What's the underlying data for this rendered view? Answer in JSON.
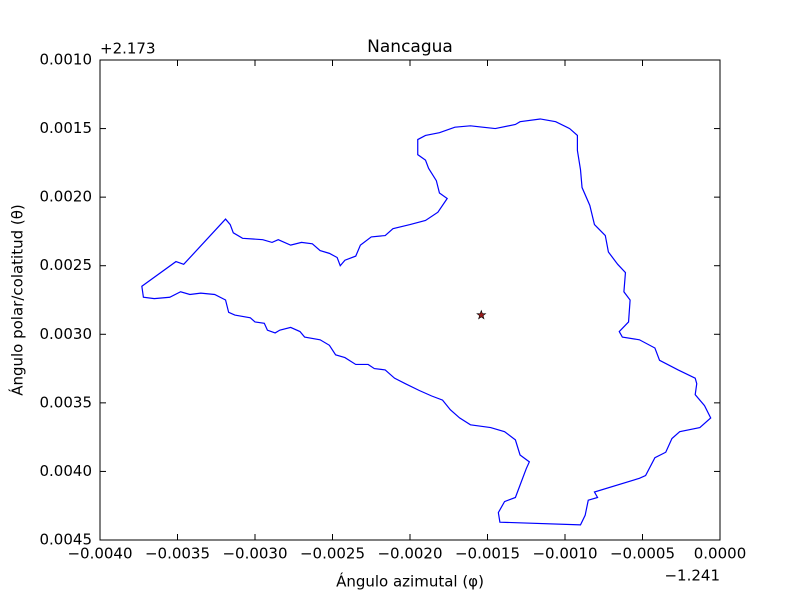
{
  "chart_data": {
    "type": "line",
    "title": "Nancagua",
    "xlabel": "Ángulo azimutal (φ)",
    "ylabel": "Ángulo polar/colatitud (θ)",
    "x_offset": "−1.241",
    "y_offset": "+2.173",
    "xlim": [
      -0.004,
      0
    ],
    "ylim": [
      0.0045,
      0.001
    ],
    "xticks": [
      {
        "value": -0.004,
        "label": "−0.0040"
      },
      {
        "value": -0.0035,
        "label": "−0.0035"
      },
      {
        "value": -0.003,
        "label": "−0.0030"
      },
      {
        "value": -0.0025,
        "label": "−0.0025"
      },
      {
        "value": -0.002,
        "label": "−0.0020"
      },
      {
        "value": -0.0015,
        "label": "−0.0015"
      },
      {
        "value": -0.001,
        "label": "−0.0010"
      },
      {
        "value": -0.0005,
        "label": "−0.0005"
      },
      {
        "value": 0,
        "label": "0.0000"
      }
    ],
    "yticks": [
      {
        "value": 0.001,
        "label": "0.0010"
      },
      {
        "value": 0.0015,
        "label": "0.0015"
      },
      {
        "value": 0.002,
        "label": "0.0020"
      },
      {
        "value": 0.0025,
        "label": "0.0025"
      },
      {
        "value": 0.003,
        "label": "0.0030"
      },
      {
        "value": 0.0035,
        "label": "0.0035"
      },
      {
        "value": 0.004,
        "label": "0.0040"
      },
      {
        "value": 0.0045,
        "label": "0.0045"
      }
    ],
    "series": [
      {
        "color": "#0000ff",
        "x": [
          -0.00373,
          -0.00351,
          -0.00346,
          -0.00319,
          -0.00316,
          -0.00314,
          -0.00308,
          -0.00295,
          -0.00289,
          -0.00285,
          -0.00277,
          -0.0027,
          -0.00263,
          -0.00258,
          -0.00252,
          -0.00247,
          -0.00245,
          -0.00242,
          -0.00235,
          -0.00232,
          -0.00225,
          -0.00216,
          -0.00211,
          -0.002,
          -0.0019,
          -0.00182,
          -0.00176,
          -0.00181,
          -0.00183,
          -0.00188,
          -0.0019,
          -0.00195,
          -0.00195,
          -0.0019,
          -0.00181,
          -0.00171,
          -0.00161,
          -0.00145,
          -0.00132,
          -0.00129,
          -0.00116,
          -0.00106,
          -0.00097,
          -0.00092,
          -0.00092,
          -0.0009,
          -0.00089,
          -0.00084,
          -0.00081,
          -0.00074,
          -0.00072,
          -0.00066,
          -0.00061,
          -0.00062,
          -0.00058,
          -0.00059,
          -0.00065,
          -0.00063,
          -0.00052,
          -0.00042,
          -0.00039,
          -0.00027,
          -0.00016,
          -0.00015,
          -0.00016,
          -0.0001,
          -6e-05,
          -0.00013,
          -0.00026,
          -0.00031,
          -0.00035,
          -0.00042,
          -0.00048,
          -0.00052,
          -0.00081,
          -0.00079,
          -0.00085,
          -0.00087,
          -0.0009,
          -0.00142,
          -0.00143,
          -0.00139,
          -0.00132,
          -0.00129,
          -0.00125,
          -0.00123,
          -0.00129,
          -0.00132,
          -0.00139,
          -0.00148,
          -0.00161,
          -0.00168,
          -0.00174,
          -0.00179,
          -0.00186,
          -0.00194,
          -0.00203,
          -0.0021,
          -0.00216,
          -0.00223,
          -0.00227,
          -0.00235,
          -0.00242,
          -0.00248,
          -0.00252,
          -0.00258,
          -0.00268,
          -0.00271,
          -0.00277,
          -0.00284,
          -0.00287,
          -0.00292,
          -0.00294,
          -0.003,
          -0.00303,
          -0.00313,
          -0.00317,
          -0.00319,
          -0.00326,
          -0.00335,
          -0.00342,
          -0.00348,
          -0.00355,
          -0.00365,
          -0.00372
        ],
        "values": [
          0.00265,
          0.00247,
          0.00249,
          0.00216,
          0.0022,
          0.00226,
          0.0023,
          0.00231,
          0.00233,
          0.00231,
          0.00235,
          0.00233,
          0.00234,
          0.00239,
          0.00241,
          0.00244,
          0.0025,
          0.00246,
          0.00243,
          0.00235,
          0.00229,
          0.00228,
          0.00223,
          0.0022,
          0.00217,
          0.00211,
          0.00201,
          0.00197,
          0.00188,
          0.00179,
          0.00173,
          0.00169,
          0.00158,
          0.00155,
          0.00153,
          0.00149,
          0.00148,
          0.0015,
          0.00147,
          0.00145,
          0.00143,
          0.00145,
          0.0015,
          0.00155,
          0.00166,
          0.0018,
          0.00193,
          0.00206,
          0.0022,
          0.00228,
          0.0024,
          0.00249,
          0.00255,
          0.00269,
          0.00275,
          0.00291,
          0.00298,
          0.00302,
          0.00304,
          0.0031,
          0.00319,
          0.00326,
          0.00332,
          0.00336,
          0.00344,
          0.00352,
          0.00361,
          0.00368,
          0.00371,
          0.00376,
          0.00386,
          0.0039,
          0.00403,
          0.00405,
          0.00415,
          0.00419,
          0.00421,
          0.00432,
          0.00439,
          0.00437,
          0.0043,
          0.00422,
          0.00419,
          0.0041,
          0.00398,
          0.00393,
          0.00388,
          0.00377,
          0.00371,
          0.00368,
          0.00366,
          0.00361,
          0.00355,
          0.00348,
          0.00345,
          0.00341,
          0.00336,
          0.00332,
          0.00326,
          0.00325,
          0.00322,
          0.00322,
          0.00317,
          0.00315,
          0.00308,
          0.00304,
          0.00302,
          0.00298,
          0.00295,
          0.00297,
          0.00299,
          0.00297,
          0.00292,
          0.00291,
          0.00288,
          0.00286,
          0.00284,
          0.00275,
          0.00271,
          0.0027,
          0.00271,
          0.00269,
          0.00273,
          0.00274,
          0.00273
        ]
      }
    ],
    "marker": {
      "x": -0.00154,
      "y": 0.00286,
      "color": "#9b1c1c"
    }
  }
}
